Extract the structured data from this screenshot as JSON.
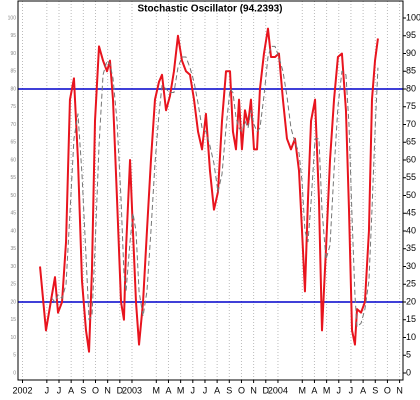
{
  "chart_data": {
    "type": "line",
    "title": "Stochastic Oscillator (94.2393)",
    "x": [
      4.44,
      4.93,
      5.42,
      5.67,
      5.92,
      6.25,
      6.58,
      6.9,
      7.23,
      7.56,
      7.89,
      8.22,
      8.47,
      8.71,
      8.96,
      9.29,
      9.62,
      9.95,
      10.19,
      10.44,
      10.77,
      11.1,
      11.34,
      11.51,
      11.84,
      12.08,
      12.33,
      12.58,
      12.91,
      13.23,
      13.56,
      13.89,
      14.22,
      14.47,
      14.8,
      15.12,
      15.45,
      15.78,
      16.11,
      16.44,
      16.77,
      17.1,
      17.43,
      17.76,
      18.08,
      18.41,
      18.74,
      19.07,
      19.4,
      19.73,
      20.06,
      20.3,
      20.55,
      20.8,
      21.04,
      21.29,
      21.54,
      21.78,
      22.03,
      22.28,
      22.52,
      22.85,
      23.18,
      23.43,
      23.76,
      24.08,
      24.41,
      24.74,
      25.07,
      25.4,
      25.73,
      25.98,
      26.22,
      26.47,
      26.72,
      27.05,
      27.37,
      27.62,
      27.95,
      28.28,
      28.61,
      28.93,
      29.26,
      29.59,
      29.84,
      30.09,
      30.33,
      30.5,
      30.83,
      31.15,
      31.48,
      31.73,
      31.98,
      32.22
    ],
    "series": [
      {
        "color": "#e8141e",
        "width": 2,
        "dash": false,
        "values": [
          30,
          12,
          22,
          27,
          17,
          20,
          37,
          77,
          83,
          60,
          26,
          12,
          6,
          29,
          71,
          92,
          88,
          85,
          88,
          77,
          49,
          20,
          15,
          35,
          60,
          40,
          20,
          8,
          20,
          40,
          60,
          77,
          82,
          84,
          74,
          78,
          85,
          95,
          88,
          85,
          84,
          77,
          68,
          63,
          73,
          57,
          46,
          51,
          71,
          85,
          85,
          68,
          63,
          77,
          63,
          74,
          70,
          77,
          63,
          63,
          80,
          90,
          97,
          89,
          89,
          90,
          77,
          66,
          63,
          66,
          57,
          40,
          23,
          49,
          71,
          77,
          49,
          12,
          35,
          60,
          77,
          89,
          90,
          74,
          46,
          12,
          8,
          18,
          17,
          20,
          40,
          77,
          88,
          94.2393
        ]
      },
      {
        "color": "#777777",
        "width": 1,
        "dash": true,
        "values": [
          null,
          null,
          21,
          20,
          22,
          21,
          25,
          45,
          66,
          73,
          56,
          33,
          15,
          16,
          35,
          64,
          84,
          88,
          87,
          83,
          71,
          49,
          28,
          23,
          37,
          45,
          40,
          23,
          16,
          23,
          40,
          59,
          73,
          81,
          80,
          79,
          79,
          86,
          89,
          89,
          86,
          82,
          76,
          69,
          68,
          64,
          59,
          51,
          56,
          69,
          80,
          79,
          72,
          69,
          68,
          71,
          69,
          74,
          70,
          68,
          69,
          78,
          89,
          92,
          92,
          89,
          85,
          78,
          69,
          65,
          62,
          54,
          40,
          37,
          48,
          66,
          66,
          46,
          32,
          36,
          57,
          75,
          85,
          84,
          70,
          44,
          22,
          13,
          14,
          18,
          26,
          46,
          68,
          86
        ]
      }
    ],
    "hlines": [
      20,
      80
    ],
    "hline_color": "#0000cc",
    "xlim": [
      2.63,
      34.28
    ],
    "xticks": [
      {
        "value": 3,
        "label": "2002"
      },
      {
        "value": 5,
        "label": "J"
      },
      {
        "value": 6,
        "label": "J"
      },
      {
        "value": 7,
        "label": "A"
      },
      {
        "value": 8,
        "label": "S"
      },
      {
        "value": 9,
        "label": "O"
      },
      {
        "value": 10,
        "label": "N"
      },
      {
        "value": 11,
        "label": "D"
      },
      {
        "value": 12,
        "label": "2003"
      },
      {
        "value": 14,
        "label": "M"
      },
      {
        "value": 15,
        "label": "A"
      },
      {
        "value": 16,
        "label": "M"
      },
      {
        "value": 17,
        "label": "J"
      },
      {
        "value": 18,
        "label": "J"
      },
      {
        "value": 19,
        "label": "A"
      },
      {
        "value": 20,
        "label": "S"
      },
      {
        "value": 21,
        "label": "O"
      },
      {
        "value": 22,
        "label": "N"
      },
      {
        "value": 23,
        "label": "D"
      },
      {
        "value": 24,
        "label": "2004"
      },
      {
        "value": 26,
        "label": "M"
      },
      {
        "value": 27,
        "label": "A"
      },
      {
        "value": 28,
        "label": "M"
      },
      {
        "value": 29,
        "label": "J"
      },
      {
        "value": 30,
        "label": "J"
      },
      {
        "value": 31,
        "label": "A"
      },
      {
        "value": 32,
        "label": "S"
      },
      {
        "value": 33,
        "label": "O"
      },
      {
        "value": 34,
        "label": "N"
      }
    ],
    "ylim": [
      0,
      105
    ],
    "yticks": [
      0,
      5,
      10,
      15,
      20,
      25,
      30,
      35,
      40,
      45,
      50,
      55,
      60,
      65,
      70,
      75,
      80,
      85,
      90,
      95,
      100
    ],
    "grid": true
  }
}
